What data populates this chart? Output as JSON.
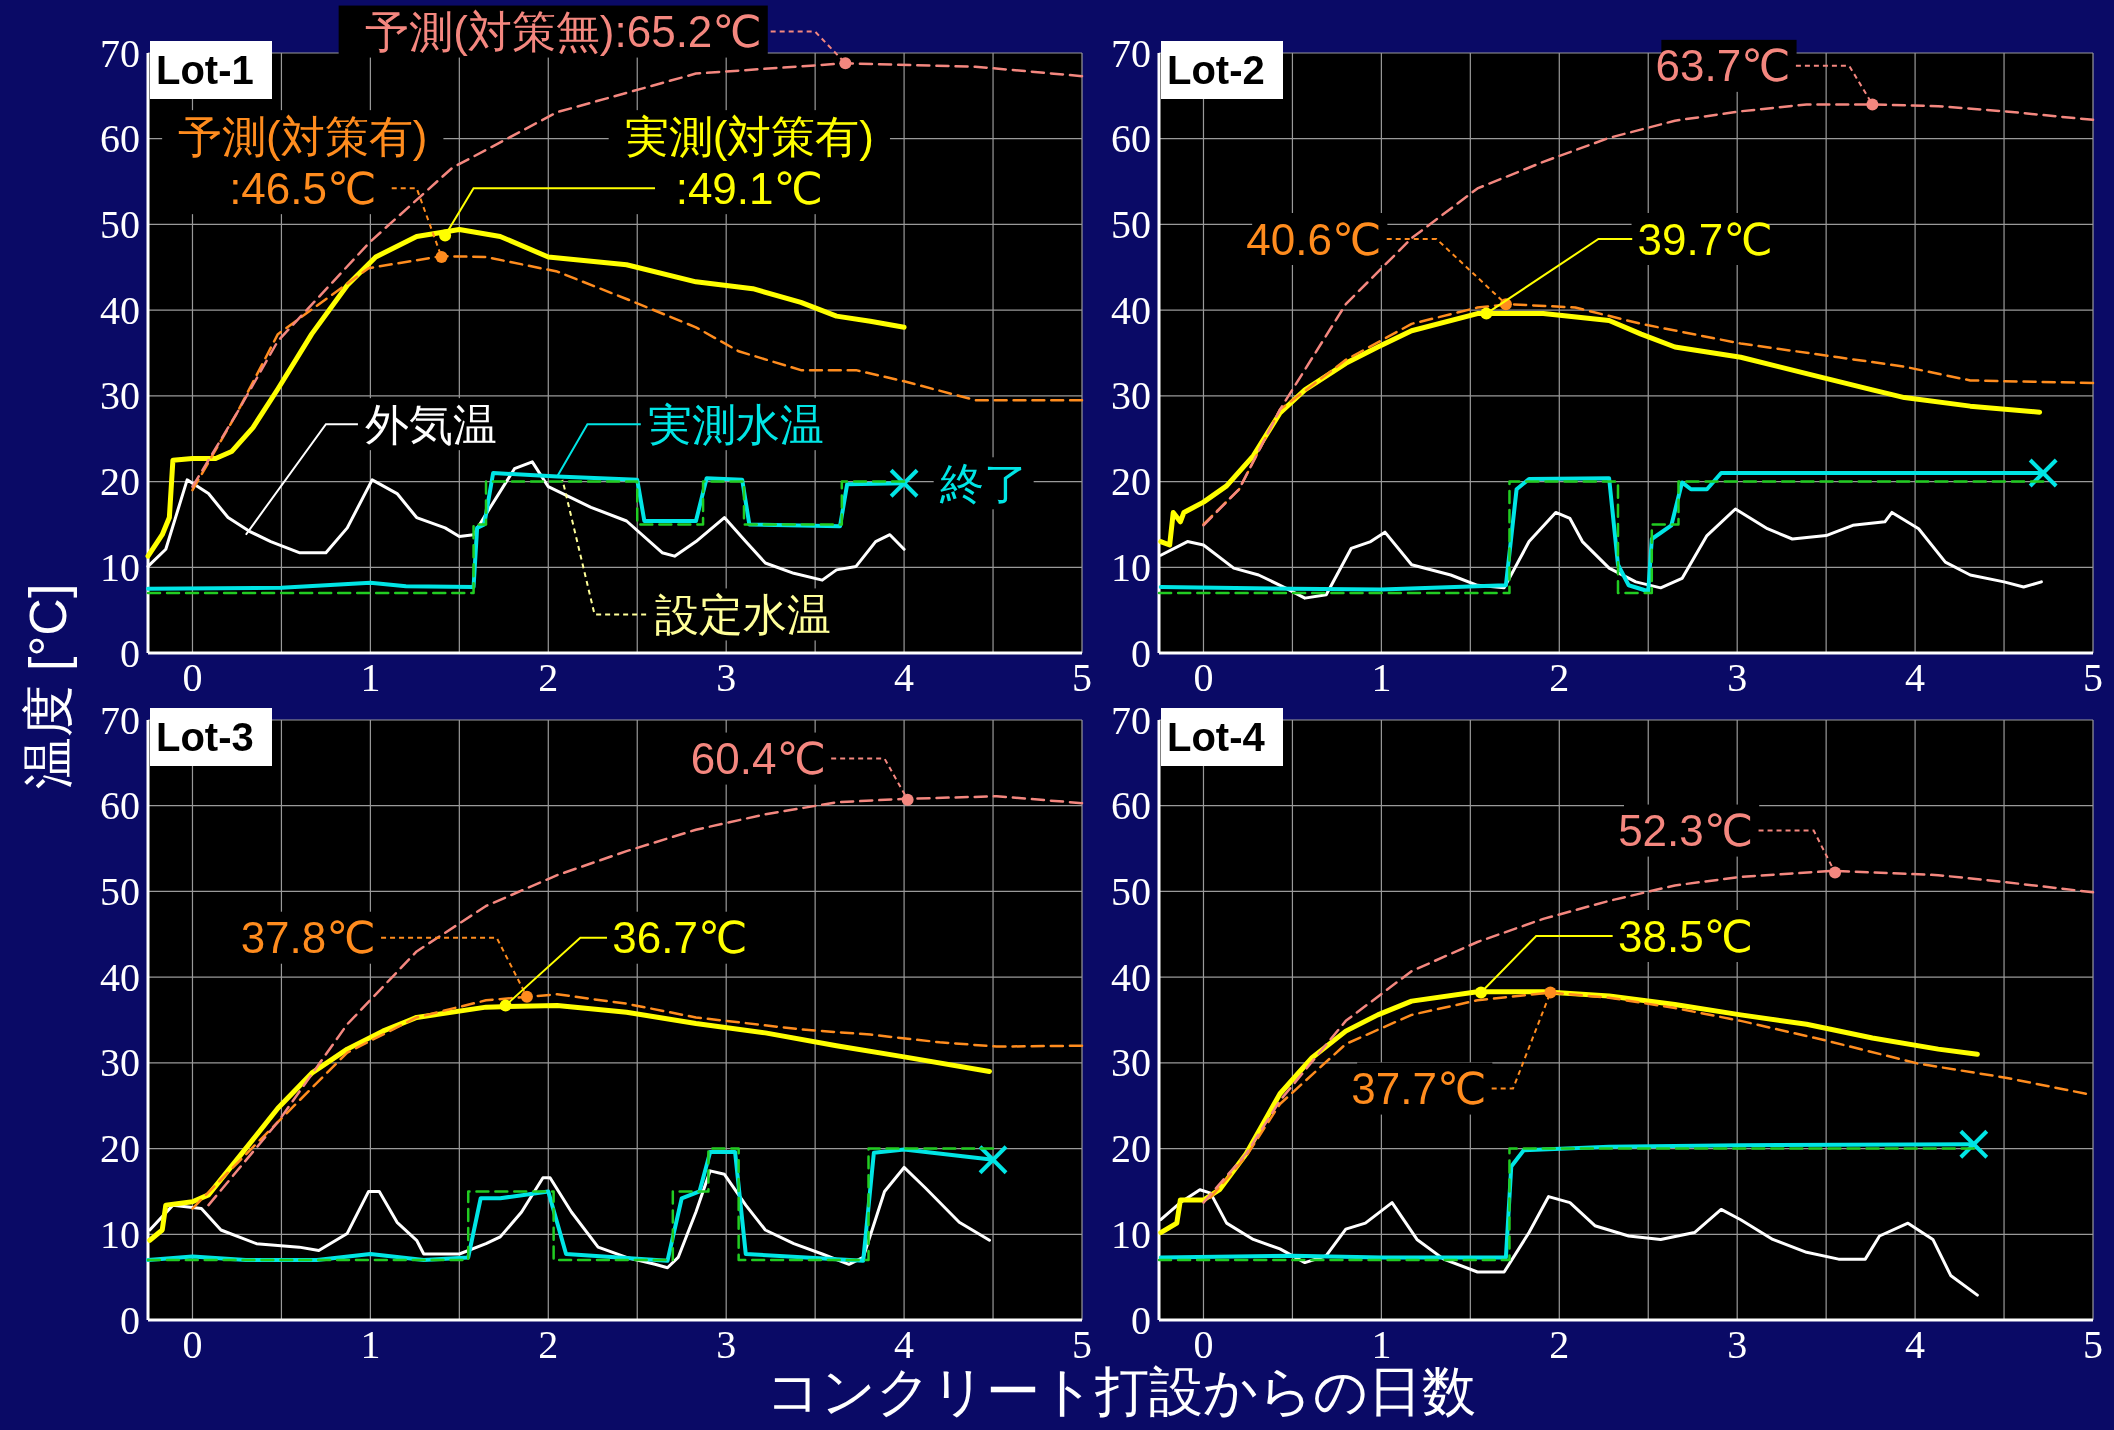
{
  "chart_data": [
    {
      "type": "line",
      "title": "Lot-1",
      "ylabel": "温度 [°C]",
      "xlim": [
        -0.25,
        5
      ],
      "ylim": [
        0,
        70
      ],
      "xticks": [
        0,
        {
          "value": 0.5,
          "label": null
        },
        1,
        {
          "value": 1.5,
          "label": null
        },
        2,
        {
          "value": 2.5,
          "label": null
        },
        3,
        {
          "value": 3.5,
          "label": null
        },
        4,
        {
          "value": 4.5,
          "label": null
        },
        5
      ],
      "yticks": [
        0,
        10,
        20,
        30,
        40,
        50,
        60,
        70
      ],
      "grid": true,
      "series": [
        {
          "type": "line",
          "line_style": "dashed",
          "color": "#f4877f",
          "x": [
            0,
            0.25,
            0.48,
            1.0,
            1.46,
            2.05,
            2.83,
            3.67,
            4.4,
            5
          ],
          "values": [
            19.4,
            28,
            36.4,
            48,
            56.6,
            63.1,
            67.6,
            68.8,
            68.4,
            67.3
          ]
        },
        {
          "type": "line",
          "line_style": "dashed",
          "color": "#ff8c1e",
          "x": [
            0,
            0.25,
            0.48,
            0.99,
            1.4,
            1.65,
            2.05,
            2.44,
            2.83,
            3.07,
            3.42,
            3.73,
            4.0,
            4.4,
            5
          ],
          "values": [
            19,
            28,
            37.2,
            44.9,
            46.3,
            46.2,
            44.5,
            41.3,
            38.0,
            35.2,
            33.0,
            33.0,
            31.7,
            29.5,
            29.5
          ]
        },
        {
          "type": "step",
          "line_style": "dashed",
          "color": "#22cc22",
          "x": [
            -0.25,
            1.58,
            1.65,
            2.5,
            2.87,
            3.1,
            3.65,
            4.0
          ],
          "values": [
            7,
            15,
            20,
            15,
            20,
            15,
            20,
            20
          ]
        },
        {
          "type": "line",
          "line_style": "solid",
          "color": "#ffffff",
          "x": [
            -0.25,
            -0.15,
            -0.03,
            0.09,
            0.2,
            0.32,
            0.44,
            0.6,
            0.67,
            0.75,
            0.87,
            1.01,
            1.15,
            1.26,
            1.42,
            1.5,
            1.58,
            1.65,
            1.81,
            1.91,
            2.0,
            2.24,
            2.44,
            2.64,
            2.71,
            2.83,
            2.99,
            3.11,
            3.22,
            3.38,
            3.54,
            3.62,
            3.73,
            3.84,
            3.92,
            4.0
          ],
          "values": [
            10.1,
            12.1,
            20.2,
            18.6,
            15.8,
            14.2,
            13.0,
            11.7,
            11.7,
            11.7,
            14.6,
            20.2,
            18.6,
            15.8,
            14.6,
            13.6,
            13.8,
            16.2,
            21.5,
            22.3,
            19.4,
            17.0,
            15.4,
            11.7,
            11.3,
            13.0,
            15.8,
            13.0,
            10.5,
            9.3,
            8.5,
            9.7,
            10.1,
            13.0,
            13.8,
            12.1
          ]
        },
        {
          "type": "line",
          "line_style": "solid",
          "color": "#00e5e5",
          "x": [
            -0.25,
            0.5,
            1.0,
            1.2,
            1.58,
            1.6,
            1.64,
            1.69,
            2.05,
            2.5,
            2.54,
            2.83,
            2.89,
            3.09,
            3.13,
            3.64,
            3.68,
            4.0
          ],
          "values": [
            7.5,
            7.6,
            8.2,
            7.8,
            7.7,
            14.6,
            15.0,
            21.0,
            20.6,
            20.2,
            15.4,
            15.4,
            20.4,
            20.2,
            15.0,
            14.8,
            19.7,
            19.8
          ]
        },
        {
          "type": "line",
          "line_style": "solid",
          "color": "#ffff00",
          "x": [
            -0.25,
            -0.17,
            -0.13,
            -0.11,
            0,
            0.13,
            0.22,
            0.34,
            0.48,
            0.67,
            0.87,
            1.03,
            1.26,
            1.5,
            1.73,
            2.0,
            2.44,
            2.83,
            3.15,
            3.42,
            3.62,
            3.81,
            4.0
          ],
          "values": [
            11.3,
            13.8,
            15.8,
            22.5,
            22.7,
            22.7,
            23.5,
            26.3,
            30.8,
            37.2,
            42.9,
            46.2,
            48.6,
            49.4,
            48.6,
            46.2,
            45.3,
            43.3,
            42.5,
            40.9,
            39.3,
            38.7,
            38.0
          ]
        }
      ],
      "annotations": [
        {
          "text": "予測(対策無):65.2℃",
          "x": 3.67,
          "y": 68.8
        },
        {
          "text": "予測(対策有)\n:46.5℃",
          "x": 1.4,
          "y": 46.2
        },
        {
          "text": "実測(対策有)\n:49.1℃",
          "x": 1.42,
          "y": 48.7
        },
        {
          "text": "外気温",
          "x": 0.3,
          "y": 13.8
        },
        {
          "text": "実測水温",
          "x": 2.05,
          "y": 20.6
        },
        {
          "text": "設定水温",
          "x": 2.08,
          "y": 20.2
        },
        {
          "text": "終了",
          "x": 4.0,
          "y": 19.8
        }
      ]
    },
    {
      "type": "line",
      "title": "Lot-2",
      "xlim": [
        -0.25,
        5
      ],
      "ylim": [
        0,
        70
      ],
      "xticks": [
        0,
        {
          "value": 0.5,
          "label": null
        },
        1,
        {
          "value": 1.5,
          "label": null
        },
        2,
        {
          "value": 2.5,
          "label": null
        },
        3,
        {
          "value": 3.5,
          "label": null
        },
        4,
        {
          "value": 4.5,
          "label": null
        },
        5
      ],
      "yticks": [
        0,
        10,
        20,
        30,
        40,
        50,
        60,
        70
      ],
      "grid": true,
      "series": [
        {
          "type": "line",
          "line_style": "dashed",
          "color": "#f4877f",
          "x": [
            0,
            0.2,
            0.43,
            0.8,
            1.17,
            1.54,
            1.91,
            2.28,
            2.65,
            3.02,
            3.39,
            3.76,
            4.13,
            4.5,
            5
          ],
          "values": [
            14.9,
            19.1,
            28.4,
            40.7,
            48.4,
            54.2,
            57.3,
            60.1,
            62.1,
            63.2,
            64.0,
            64.0,
            63.8,
            63.2,
            62.2
          ]
        },
        {
          "type": "line",
          "line_style": "dashed",
          "color": "#ff8c1e",
          "x": [
            0,
            0.2,
            0.43,
            0.8,
            1.17,
            1.54,
            1.72,
            2.09,
            2.46,
            3.02,
            3.57,
            3.94,
            4.31,
            5
          ],
          "values": [
            15,
            19.1,
            28.4,
            34.2,
            38.4,
            40.3,
            40.7,
            40.3,
            38.4,
            36.1,
            34.5,
            33.4,
            31.8,
            31.5
          ]
        },
        {
          "type": "step",
          "line_style": "dashed",
          "color": "#22cc22",
          "x": [
            -0.25,
            1.72,
            2.33,
            2.52,
            2.67,
            4.72
          ],
          "values": [
            7,
            20,
            7,
            15,
            20,
            20
          ]
        },
        {
          "type": "line",
          "line_style": "solid",
          "color": "#ffffff",
          "x": [
            -0.24,
            -0.09,
            0,
            0.17,
            0.31,
            0.46,
            0.57,
            0.69,
            0.83,
            0.94,
            1.02,
            1.17,
            1.39,
            1.54,
            1.69,
            1.83,
            1.98,
            2.06,
            2.13,
            2.28,
            2.43,
            2.57,
            2.69,
            2.83,
            2.99,
            3.17,
            3.31,
            3.5,
            3.65,
            3.83,
            3.87,
            4.02,
            4.17,
            4.31,
            4.5,
            4.61,
            4.71
          ],
          "values": [
            11.4,
            13.0,
            12.6,
            9.9,
            9.1,
            7.6,
            6.4,
            6.8,
            12.2,
            13.0,
            14.1,
            10.3,
            9.1,
            7.9,
            7.6,
            13.0,
            16.4,
            15.7,
            13.0,
            9.9,
            8.3,
            7.6,
            8.7,
            13.7,
            16.8,
            14.5,
            13.3,
            13.7,
            14.9,
            15.3,
            16.4,
            14.5,
            10.6,
            9.1,
            8.3,
            7.7,
            8.3
          ]
        },
        {
          "type": "line",
          "line_style": "solid",
          "color": "#00e5e5",
          "x": [
            -0.24,
            0.5,
            1.0,
            1.7,
            1.76,
            1.83,
            2.28,
            2.33,
            2.39,
            2.5,
            2.52,
            2.63,
            2.69,
            2.74,
            2.83,
            2.91,
            4.72
          ],
          "values": [
            7.7,
            7.5,
            7.4,
            7.9,
            19.1,
            20.3,
            20.4,
            10.3,
            7.9,
            7.2,
            13.3,
            14.9,
            19.9,
            19.1,
            19.1,
            21.0,
            21.0
          ]
        },
        {
          "type": "line",
          "line_style": "solid",
          "color": "#ffff00",
          "x": [
            -0.24,
            -0.19,
            -0.17,
            -0.13,
            -0.11,
            0,
            0.13,
            0.28,
            0.43,
            0.57,
            0.8,
            0.98,
            1.17,
            1.54,
            1.91,
            2.28,
            2.46,
            2.65,
            3.02,
            3.39,
            3.76,
            3.94,
            4.31,
            4.7
          ],
          "values": [
            13.0,
            12.6,
            16.4,
            15.3,
            16.4,
            17.6,
            19.5,
            23.0,
            28.0,
            30.7,
            33.8,
            35.7,
            37.6,
            39.6,
            39.6,
            38.8,
            37.2,
            35.7,
            34.5,
            32.6,
            30.7,
            29.8,
            28.8,
            28.1
          ]
        }
      ],
      "annotations": [
        {
          "text": "63.7℃",
          "x": 3.76,
          "y": 64.0
        },
        {
          "text": "40.6℃",
          "x": 1.7,
          "y": 40.7
        },
        {
          "text": "39.7℃",
          "x": 1.59,
          "y": 39.6
        }
      ]
    },
    {
      "type": "line",
      "title": "Lot-3",
      "xlabel": "コンクリート打設からの日数",
      "xlim": [
        -0.25,
        5
      ],
      "ylim": [
        0,
        70
      ],
      "xticks": [
        0,
        {
          "value": 0.5,
          "label": null
        },
        1,
        {
          "value": 1.5,
          "label": null
        },
        2,
        {
          "value": 2.5,
          "label": null
        },
        3,
        {
          "value": 3.5,
          "label": null
        },
        4,
        {
          "value": 4.5,
          "label": null
        },
        5
      ],
      "yticks": [
        0,
        10,
        20,
        30,
        40,
        50,
        60,
        70
      ],
      "grid": true,
      "series": [
        {
          "type": "line",
          "line_style": "dashed",
          "color": "#f4877f",
          "x": [
            0.09,
            0.48,
            0.87,
            1.26,
            1.65,
            2.05,
            2.44,
            2.83,
            3.22,
            3.62,
            4.0,
            4.52,
            5
          ],
          "values": [
            13.4,
            23.1,
            34.5,
            43.0,
            48.3,
            51.9,
            54.7,
            57.2,
            59.0,
            60.4,
            60.8,
            61.1,
            60.3
          ]
        },
        {
          "type": "line",
          "line_style": "dashed",
          "color": "#ff8c1e",
          "x": [
            0,
            0.48,
            0.87,
            1.26,
            1.65,
            2.05,
            2.44,
            2.83,
            3.42,
            3.81,
            4.2,
            4.52,
            5
          ],
          "values": [
            13.0,
            23.1,
            31.2,
            35.3,
            37.3,
            38.0,
            36.9,
            35.3,
            33.9,
            33.3,
            32.4,
            31.9,
            32.0
          ]
        },
        {
          "type": "step",
          "line_style": "dashed",
          "color": "#22cc22",
          "x": [
            -0.25,
            1.55,
            2.03,
            2.7,
            2.9,
            3.07,
            3.8,
            4.5
          ],
          "values": [
            7,
            15,
            7,
            15,
            20,
            7,
            20,
            20
          ]
        },
        {
          "type": "line",
          "line_style": "solid",
          "color": "#ffffff",
          "x": [
            -0.24,
            -0.11,
            0.05,
            0.16,
            0.36,
            0.6,
            0.71,
            0.87,
            0.99,
            1.05,
            1.15,
            1.26,
            1.3,
            1.5,
            1.65,
            1.73,
            1.85,
            1.97,
            2.01,
            2.13,
            2.28,
            2.44,
            2.6,
            2.67,
            2.73,
            2.83,
            2.91,
            2.99,
            3.11,
            3.22,
            3.38,
            3.54,
            3.69,
            3.77,
            3.89,
            4.0,
            4.12,
            4.31,
            4.48
          ],
          "values": [
            10.5,
            13.4,
            13.0,
            10.5,
            8.9,
            8.5,
            8.1,
            10.1,
            15.0,
            15.0,
            11.4,
            9.3,
            7.7,
            7.7,
            8.9,
            9.7,
            12.6,
            16.6,
            16.6,
            12.6,
            8.5,
            7.3,
            6.5,
            6.1,
            7.3,
            12.6,
            17.4,
            17.0,
            13.4,
            10.5,
            8.9,
            7.7,
            6.5,
            7.3,
            15.0,
            17.8,
            15.4,
            11.4,
            9.3
          ]
        },
        {
          "type": "line",
          "line_style": "solid",
          "color": "#00e5e5",
          "x": [
            -0.25,
            0,
            0.3,
            0.7,
            1.0,
            1.3,
            1.55,
            1.62,
            1.73,
            2.0,
            2.1,
            2.67,
            2.75,
            2.85,
            2.91,
            3.05,
            3.11,
            3.77,
            3.83,
            4.0,
            4.5
          ],
          "values": [
            7.0,
            7.4,
            7.0,
            7.0,
            7.7,
            7.0,
            7.3,
            14.2,
            14.2,
            15.0,
            7.7,
            6.9,
            14.2,
            15.0,
            19.6,
            19.6,
            7.7,
            6.9,
            19.5,
            19.9,
            18.7
          ]
        },
        {
          "type": "line",
          "line_style": "solid",
          "color": "#ffff00",
          "x": [
            -0.24,
            -0.17,
            -0.15,
            0,
            0.09,
            0.28,
            0.48,
            0.67,
            0.87,
            1.07,
            1.26,
            1.65,
            2.05,
            2.44,
            2.83,
            3.22,
            3.62,
            4.0,
            4.48
          ],
          "values": [
            9.3,
            10.5,
            13.4,
            13.8,
            14.6,
            19.5,
            24.7,
            28.8,
            31.6,
            33.7,
            35.3,
            36.5,
            36.7,
            35.9,
            34.6,
            33.5,
            32.0,
            30.7,
            29.0
          ]
        }
      ],
      "annotations": [
        {
          "text": "60.4℃",
          "x": 4.02,
          "y": 60.7
        },
        {
          "text": "37.8℃",
          "x": 1.88,
          "y": 37.7
        },
        {
          "text": "36.7℃",
          "x": 1.76,
          "y": 36.7
        }
      ]
    },
    {
      "type": "line",
      "title": "Lot-4",
      "xlim": [
        -0.25,
        5
      ],
      "ylim": [
        0,
        70
      ],
      "xticks": [
        0,
        {
          "value": 0.5,
          "label": null
        },
        1,
        {
          "value": 1.5,
          "label": null
        },
        2,
        {
          "value": 2.5,
          "label": null
        },
        3,
        {
          "value": 3.5,
          "label": null
        },
        4,
        {
          "value": 4.5,
          "label": null
        },
        5
      ],
      "yticks": [
        0,
        10,
        20,
        30,
        40,
        50,
        60,
        70
      ],
      "grid": true,
      "series": [
        {
          "type": "line",
          "line_style": "dashed",
          "color": "#f4877f",
          "x": [
            0,
            0.24,
            0.43,
            0.8,
            1.17,
            1.54,
            1.91,
            2.28,
            2.65,
            3.02,
            3.54,
            4.13,
            4.5,
            5
          ],
          "values": [
            13.7,
            19.4,
            25.6,
            34.9,
            40.7,
            44.1,
            46.8,
            48.9,
            50.7,
            51.7,
            52.4,
            51.9,
            51.1,
            49.9
          ]
        },
        {
          "type": "line",
          "line_style": "dashed",
          "color": "#ff8c1e",
          "x": [
            0.04,
            0.24,
            0.43,
            0.8,
            1.17,
            1.54,
            1.95,
            2.28,
            2.65,
            3.02,
            3.5,
            4.02,
            4.5,
            4.96
          ],
          "values": [
            14.3,
            19.1,
            25.2,
            32.2,
            35.6,
            37.3,
            38.2,
            37.6,
            36.4,
            34.9,
            32.6,
            29.9,
            28.3,
            26.4
          ]
        },
        {
          "type": "step",
          "line_style": "dashed",
          "color": "#22cc22",
          "x": [
            -0.25,
            1.72,
            4.33
          ],
          "values": [
            7,
            20,
            20
          ]
        },
        {
          "type": "line",
          "line_style": "solid",
          "color": "#ffffff",
          "x": [
            -0.24,
            -0.13,
            -0.02,
            0.04,
            0.13,
            0.28,
            0.43,
            0.57,
            0.69,
            0.8,
            0.91,
            1.06,
            1.2,
            1.35,
            1.54,
            1.69,
            1.83,
            1.94,
            2.06,
            2.2,
            2.39,
            2.57,
            2.76,
            2.91,
            3.02,
            3.2,
            3.39,
            3.57,
            3.72,
            3.8,
            3.96,
            4.1,
            4.2,
            4.35
          ],
          "values": [
            11.7,
            13.7,
            15.2,
            14.8,
            11.3,
            9.4,
            8.3,
            6.7,
            7.5,
            10.6,
            11.3,
            13.7,
            9.4,
            7.1,
            5.6,
            5.6,
            10.2,
            14.4,
            13.7,
            11.0,
            9.8,
            9.4,
            10.2,
            12.9,
            11.7,
            9.4,
            7.9,
            7.1,
            7.1,
            9.8,
            11.3,
            9.4,
            5.2,
            2.9
          ]
        },
        {
          "type": "line",
          "line_style": "solid",
          "color": "#00e5e5",
          "x": [
            -0.24,
            0.5,
            1.0,
            1.7,
            1.73,
            1.8,
            2.28,
            3.02,
            4.33
          ],
          "values": [
            7.3,
            7.5,
            7.3,
            7.3,
            17.9,
            19.8,
            20.2,
            20.4,
            20.5
          ]
        },
        {
          "type": "line",
          "line_style": "solid",
          "color": "#ffff00",
          "x": [
            -0.24,
            -0.15,
            -0.13,
            0,
            0.09,
            0.24,
            0.43,
            0.61,
            0.8,
            0.98,
            1.17,
            1.54,
            1.91,
            2.28,
            2.65,
            3.02,
            3.39,
            3.76,
            4.13,
            4.35
          ],
          "values": [
            10.2,
            11.3,
            14.0,
            14.0,
            15.2,
            19.4,
            26.4,
            30.6,
            33.7,
            35.6,
            37.2,
            38.3,
            38.3,
            37.8,
            36.8,
            35.6,
            34.5,
            32.9,
            31.6,
            31.0
          ]
        }
      ],
      "annotations": [
        {
          "text": "52.3℃",
          "x": 3.55,
          "y": 52.2
        },
        {
          "text": "38.5℃",
          "x": 1.56,
          "y": 38.2
        },
        {
          "text": "37.7℃",
          "x": 1.95,
          "y": 38.2
        }
      ]
    }
  ]
}
